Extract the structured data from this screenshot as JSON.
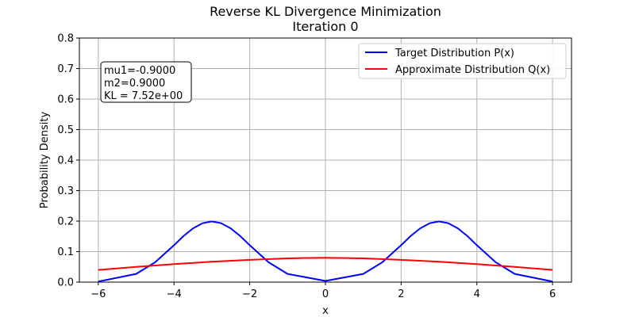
{
  "chart_data": {
    "type": "line",
    "title": "Reverse KL Divergence Minimization",
    "subtitle": "Iteration 0",
    "xlabel": "x",
    "ylabel": "Probability Density",
    "xlim": [
      -6.5,
      6.5
    ],
    "ylim": [
      0,
      0.8
    ],
    "x_ticks": [
      -6,
      -4,
      -2,
      0,
      2,
      4,
      6
    ],
    "x_tick_labels": [
      "−6",
      "−4",
      "−2",
      "0",
      "2",
      "4",
      "6"
    ],
    "y_ticks": [
      0.0,
      0.1,
      0.2,
      0.3,
      0.4,
      0.5,
      0.6,
      0.7,
      0.8
    ],
    "y_tick_labels": [
      "0.0",
      "0.1",
      "0.2",
      "0.3",
      "0.4",
      "0.5",
      "0.6",
      "0.7",
      "0.8"
    ],
    "grid": true,
    "legend_position": "top-right",
    "series": [
      {
        "name": "Target Distribution P(x)",
        "color": "#0000ff",
        "x": [
          -6.0,
          -5.0,
          -4.5,
          -4.0,
          -3.75,
          -3.5,
          -3.25,
          -3.0,
          -2.75,
          -2.5,
          -2.25,
          -2.0,
          -1.5,
          -1.0,
          0.0,
          1.0,
          1.5,
          2.0,
          2.25,
          2.5,
          2.75,
          3.0,
          3.25,
          3.5,
          3.75,
          4.0,
          4.5,
          5.0,
          6.0
        ],
        "values": [
          0.002,
          0.027,
          0.065,
          0.121,
          0.151,
          0.176,
          0.193,
          0.199,
          0.193,
          0.176,
          0.151,
          0.121,
          0.065,
          0.027,
          0.004,
          0.027,
          0.065,
          0.121,
          0.151,
          0.176,
          0.193,
          0.199,
          0.193,
          0.176,
          0.151,
          0.121,
          0.065,
          0.027,
          0.002
        ]
      },
      {
        "name": "Approximate Distribution Q(x)",
        "color": "#ff0000",
        "x": [
          -6,
          -5,
          -4,
          -3,
          -2,
          -1,
          0,
          1,
          2,
          3,
          4,
          5,
          6
        ],
        "values": [
          0.04,
          0.05,
          0.059,
          0.067,
          0.073,
          0.078,
          0.08,
          0.078,
          0.073,
          0.067,
          0.059,
          0.05,
          0.04
        ]
      }
    ],
    "annotation": {
      "lines": [
        "mu1=-0.9000",
        "m2=0.9000",
        "KL = 7.52e+00"
      ],
      "position": "top-left"
    }
  }
}
